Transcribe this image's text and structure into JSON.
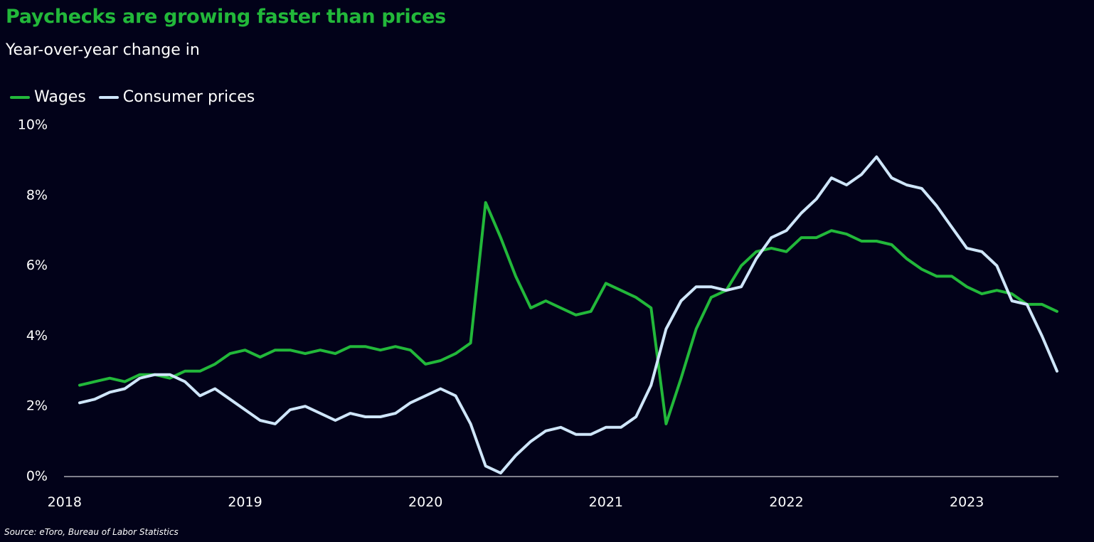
{
  "title": "Paychecks are growing faster than prices",
  "subtitle": "Year-over-year change in",
  "source": "Source: eToro, Bureau of Labor Statistics",
  "colors": {
    "background": "#020219",
    "wages": "#22b83a",
    "prices": "#cfe6fa",
    "axis": "#ffffff"
  },
  "chart_data": {
    "type": "line",
    "title": "Paychecks are growing faster than prices",
    "subtitle": "Year-over-year change in",
    "ylim": [
      0,
      10
    ],
    "y_ticks": [
      0,
      2,
      4,
      6,
      8,
      10
    ],
    "y_tick_labels": [
      "0%",
      "2%",
      "4%",
      "6%",
      "8%",
      "10%"
    ],
    "x_tick_labels": [
      "2018",
      "2019",
      "2020",
      "2021",
      "2022",
      "2023"
    ],
    "x_start": "2018-02",
    "x_end": "2023-07",
    "grid": false,
    "legend": "top-left",
    "series": [
      {
        "name": "Wages",
        "color": "#22b83a",
        "values": [
          2.6,
          2.7,
          2.8,
          2.7,
          2.9,
          2.9,
          2.8,
          3.0,
          3.0,
          3.2,
          3.5,
          3.6,
          3.4,
          3.6,
          3.6,
          3.5,
          3.6,
          3.5,
          3.7,
          3.7,
          3.6,
          3.7,
          3.6,
          3.2,
          3.3,
          3.5,
          3.8,
          7.8,
          6.8,
          5.7,
          4.8,
          5.0,
          4.8,
          4.6,
          4.7,
          5.5,
          5.3,
          5.1,
          4.8,
          1.5,
          2.8,
          4.2,
          5.1,
          5.3,
          6.0,
          6.4,
          6.5,
          6.4,
          6.8,
          6.8,
          7.0,
          6.9,
          6.7,
          6.7,
          6.6,
          6.2,
          5.9,
          5.7,
          5.7,
          5.4,
          5.2,
          5.3,
          5.2,
          4.9,
          4.9,
          4.7
        ]
      },
      {
        "name": "Consumer prices",
        "color": "#cfe6fa",
        "values": [
          2.1,
          2.2,
          2.4,
          2.5,
          2.8,
          2.9,
          2.9,
          2.7,
          2.3,
          2.5,
          2.2,
          1.9,
          1.6,
          1.5,
          1.9,
          2.0,
          1.8,
          1.6,
          1.8,
          1.7,
          1.7,
          1.8,
          2.1,
          2.3,
          2.5,
          2.3,
          1.5,
          0.3,
          0.1,
          0.6,
          1.0,
          1.3,
          1.4,
          1.2,
          1.2,
          1.4,
          1.4,
          1.7,
          2.6,
          4.2,
          5.0,
          5.4,
          5.4,
          5.3,
          5.4,
          6.2,
          6.8,
          7.0,
          7.5,
          7.9,
          8.5,
          8.3,
          8.6,
          9.1,
          8.5,
          8.3,
          8.2,
          7.7,
          7.1,
          6.5,
          6.4,
          6.0,
          5.0,
          4.9,
          4.0,
          3.0
        ]
      }
    ]
  }
}
